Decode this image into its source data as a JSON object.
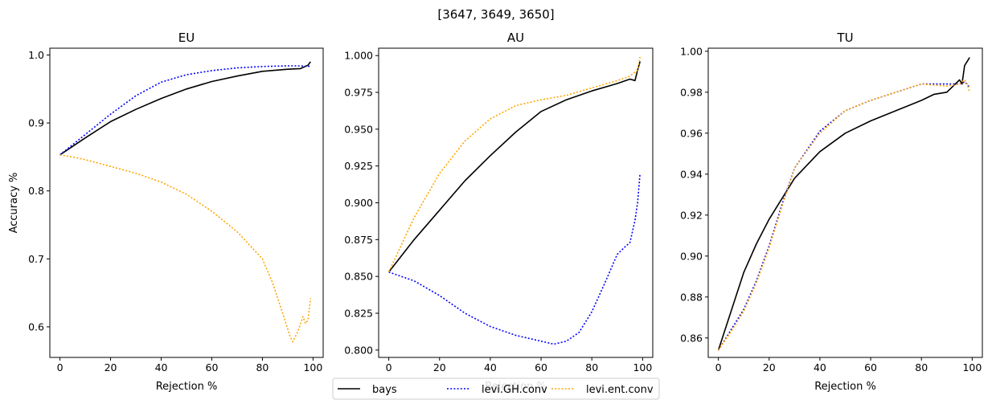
{
  "suptitle": "[3647, 3649, 3650]",
  "chart_data": [
    {
      "type": "line",
      "title": "EU",
      "xlabel": "Rejection %",
      "ylabel": "Accuracy %",
      "xlim": [
        -4,
        104
      ],
      "ylim": [
        0.555,
        1.01
      ],
      "xticks": [
        0,
        20,
        40,
        60,
        80,
        100
      ],
      "yticks": [
        0.6,
        0.7,
        0.8,
        0.9,
        1.0
      ],
      "ytick_labels": [
        "0.6",
        "0.7",
        "0.8",
        "0.9",
        "1.0"
      ],
      "series": [
        {
          "name": "bays",
          "color": "#000000",
          "style": "solid",
          "x": [
            0,
            10,
            20,
            30,
            40,
            50,
            60,
            70,
            80,
            90,
            95,
            98,
            99
          ],
          "y": [
            0.853,
            0.878,
            0.902,
            0.92,
            0.936,
            0.95,
            0.961,
            0.969,
            0.976,
            0.979,
            0.98,
            0.985,
            0.99
          ]
        },
        {
          "name": "levi.GH.conv",
          "color": "#0000ff",
          "style": "dotted",
          "x": [
            0,
            10,
            20,
            30,
            40,
            50,
            60,
            70,
            80,
            90,
            95,
            98,
            99
          ],
          "y": [
            0.853,
            0.883,
            0.913,
            0.94,
            0.96,
            0.971,
            0.977,
            0.981,
            0.983,
            0.984,
            0.984,
            0.983,
            0.984
          ]
        },
        {
          "name": "levi.ent.conv",
          "color": "#ffa500",
          "style": "dotted",
          "x": [
            0,
            5,
            10,
            20,
            30,
            40,
            50,
            60,
            70,
            80,
            84,
            88,
            91,
            92,
            94,
            96,
            97,
            98,
            99
          ],
          "y": [
            0.853,
            0.85,
            0.846,
            0.836,
            0.826,
            0.813,
            0.795,
            0.77,
            0.74,
            0.7,
            0.665,
            0.62,
            0.585,
            0.578,
            0.593,
            0.615,
            0.605,
            0.61,
            0.642
          ]
        }
      ]
    },
    {
      "type": "line",
      "title": "AU",
      "xlabel": "Rejection %",
      "ylabel": "",
      "xlim": [
        -4,
        104
      ],
      "ylim": [
        0.795,
        1.005
      ],
      "xticks": [
        0,
        20,
        40,
        60,
        80,
        100
      ],
      "yticks": [
        0.8,
        0.825,
        0.85,
        0.875,
        0.9,
        0.925,
        0.95,
        0.975,
        1.0
      ],
      "ytick_labels": [
        "0.800",
        "0.825",
        "0.850",
        "0.875",
        "0.900",
        "0.925",
        "0.950",
        "0.975",
        "1.000"
      ],
      "series": [
        {
          "name": "bays",
          "color": "#000000",
          "style": "solid",
          "x": [
            0,
            10,
            20,
            30,
            40,
            50,
            60,
            70,
            80,
            90,
            95,
            97,
            98,
            99
          ],
          "y": [
            0.853,
            0.875,
            0.895,
            0.915,
            0.932,
            0.948,
            0.962,
            0.97,
            0.976,
            0.981,
            0.984,
            0.983,
            0.99,
            0.996
          ]
        },
        {
          "name": "levi.GH.conv",
          "color": "#0000ff",
          "style": "dotted",
          "x": [
            0,
            10,
            20,
            30,
            40,
            50,
            60,
            65,
            70,
            75,
            80,
            85,
            90,
            93,
            95,
            97,
            98,
            99
          ],
          "y": [
            0.853,
            0.847,
            0.837,
            0.825,
            0.816,
            0.81,
            0.806,
            0.804,
            0.806,
            0.812,
            0.826,
            0.845,
            0.865,
            0.87,
            0.873,
            0.888,
            0.9,
            0.92
          ]
        },
        {
          "name": "levi.ent.conv",
          "color": "#ffa500",
          "style": "dotted",
          "x": [
            0,
            10,
            20,
            30,
            40,
            50,
            60,
            70,
            80,
            90,
            95,
            98,
            99
          ],
          "y": [
            0.853,
            0.89,
            0.92,
            0.942,
            0.957,
            0.966,
            0.97,
            0.973,
            0.978,
            0.983,
            0.986,
            0.99,
            0.999
          ]
        }
      ]
    },
    {
      "type": "line",
      "title": "TU",
      "xlabel": "Rejection %",
      "ylabel": "",
      "xlim": [
        -4,
        104
      ],
      "ylim": [
        0.8505,
        1.0015
      ],
      "xticks": [
        0,
        20,
        40,
        60,
        80,
        100
      ],
      "yticks": [
        0.86,
        0.88,
        0.9,
        0.92,
        0.94,
        0.96,
        0.98,
        1.0
      ],
      "ytick_labels": [
        "0.86",
        "0.88",
        "0.90",
        "0.92",
        "0.94",
        "0.96",
        "0.98",
        "1.00"
      ],
      "series": [
        {
          "name": "bays",
          "color": "#000000",
          "style": "solid",
          "x": [
            0,
            5,
            10,
            15,
            20,
            25,
            30,
            40,
            50,
            60,
            70,
            80,
            85,
            90,
            95,
            96,
            97,
            98,
            99
          ],
          "y": [
            0.854,
            0.873,
            0.892,
            0.906,
            0.918,
            0.928,
            0.938,
            0.951,
            0.96,
            0.966,
            0.971,
            0.976,
            0.979,
            0.98,
            0.986,
            0.984,
            0.993,
            0.995,
            0.997
          ]
        },
        {
          "name": "levi.GH.conv",
          "color": "#0000ff",
          "style": "dotted",
          "x": [
            0,
            5,
            10,
            15,
            20,
            25,
            30,
            40,
            50,
            60,
            70,
            80,
            90,
            95,
            97,
            98,
            99
          ],
          "y": [
            0.854,
            0.864,
            0.874,
            0.888,
            0.905,
            0.925,
            0.943,
            0.961,
            0.971,
            0.976,
            0.98,
            0.984,
            0.984,
            0.984,
            0.985,
            0.984,
            0.982
          ]
        },
        {
          "name": "levi.ent.conv",
          "color": "#ffa500",
          "style": "dotted",
          "x": [
            0,
            5,
            10,
            15,
            20,
            25,
            30,
            40,
            50,
            60,
            70,
            80,
            90,
            95,
            97,
            98,
            99
          ],
          "y": [
            0.854,
            0.863,
            0.873,
            0.887,
            0.904,
            0.924,
            0.943,
            0.96,
            0.971,
            0.976,
            0.98,
            0.984,
            0.983,
            0.984,
            0.986,
            0.984,
            0.98
          ]
        }
      ]
    }
  ],
  "legend": {
    "placement": "bottom-center",
    "entries": [
      {
        "label": "bays",
        "color": "#000000",
        "style": "solid"
      },
      {
        "label": "levi.GH.conv",
        "color": "#0000ff",
        "style": "dotted"
      },
      {
        "label": "levi.ent.conv",
        "color": "#ffa500",
        "style": "dotted"
      }
    ]
  }
}
